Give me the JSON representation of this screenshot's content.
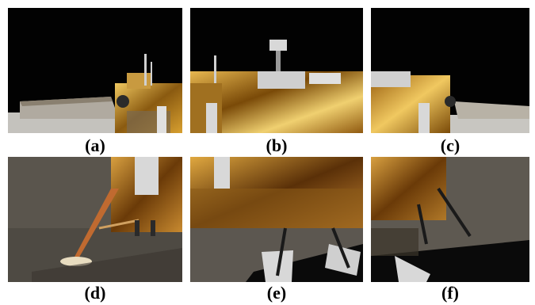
{
  "figure": {
    "panels": [
      {
        "id": "a",
        "label": "(a)"
      },
      {
        "id": "b",
        "label": "(b)"
      },
      {
        "id": "c",
        "label": "(c)"
      },
      {
        "id": "d",
        "label": "(d)"
      },
      {
        "id": "e",
        "label": "(e)"
      },
      {
        "id": "f",
        "label": "(f)"
      }
    ],
    "colors": {
      "sky": "#000000",
      "regolith": "#bfbcb6",
      "gold_foil": "#b8860b",
      "gold_light": "#e8c25a",
      "panel_silver": "#d9d9d9"
    }
  }
}
